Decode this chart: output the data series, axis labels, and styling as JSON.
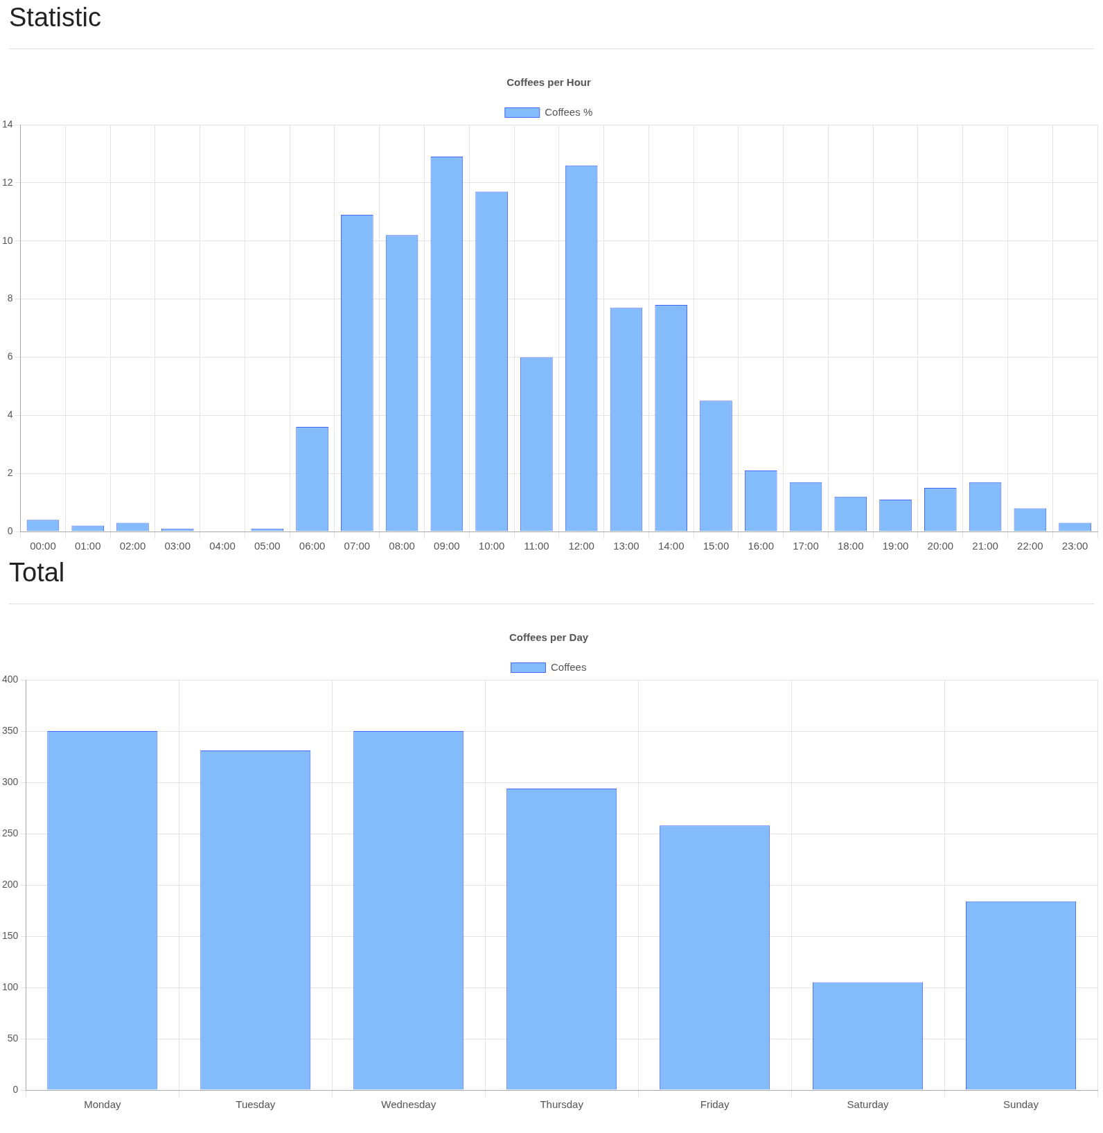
{
  "chart_data": [
    {
      "type": "bar",
      "title": "Coffees per Hour",
      "annotations": [
        "Statistic"
      ],
      "categories": [
        "00:00",
        "01:00",
        "02:00",
        "03:00",
        "04:00",
        "05:00",
        "06:00",
        "07:00",
        "08:00",
        "09:00",
        "10:00",
        "11:00",
        "12:00",
        "13:00",
        "14:00",
        "15:00",
        "16:00",
        "17:00",
        "18:00",
        "19:00",
        "20:00",
        "21:00",
        "22:00",
        "23:00"
      ],
      "series": [
        {
          "name": "Coffees %",
          "color": "#7fb9fb",
          "values": [
            0.4,
            0.2,
            0.3,
            0.1,
            0,
            0.1,
            3.6,
            10.9,
            10.2,
            12.9,
            11.7,
            6.0,
            12.6,
            7.7,
            7.8,
            4.5,
            2.1,
            1.7,
            1.2,
            1.1,
            1.5,
            1.7,
            0.8,
            0.3
          ]
        }
      ],
      "ylim": [
        0,
        14
      ],
      "yticks": [
        0,
        2,
        4,
        6,
        8,
        10,
        12,
        14
      ],
      "grid": true,
      "legend": "top"
    },
    {
      "type": "bar",
      "title": "Coffees per Day",
      "annotations": [
        "Total"
      ],
      "categories": [
        "Monday",
        "Tuesday",
        "Wednesday",
        "Thursday",
        "Friday",
        "Saturday",
        "Sunday"
      ],
      "series": [
        {
          "name": "Coffees",
          "color": "#7fb9fb",
          "values": [
            350,
            331,
            350,
            294,
            258,
            105,
            184
          ]
        }
      ],
      "ylim": [
        0,
        400
      ],
      "yticks": [
        0,
        50,
        100,
        150,
        200,
        250,
        300,
        350,
        400
      ],
      "grid": true,
      "legend": "top"
    }
  ]
}
